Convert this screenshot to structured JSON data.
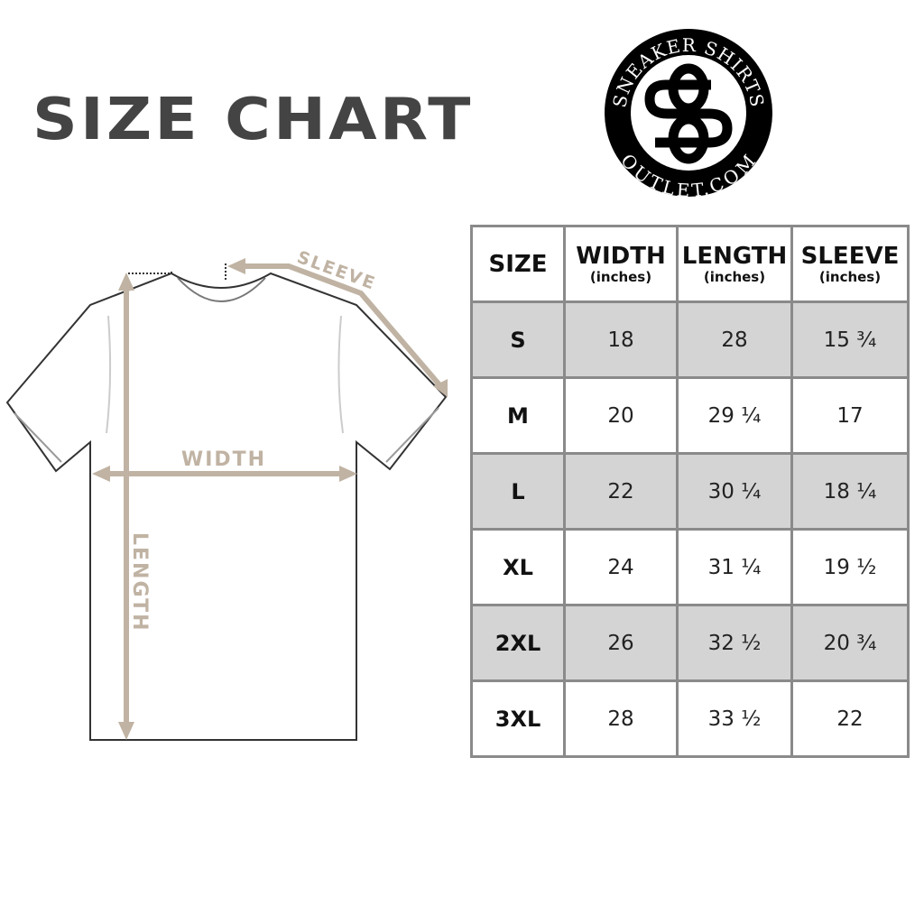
{
  "title": "SIZE CHART",
  "logo": {
    "top_text": "SNEAKER SHIRTS",
    "bottom_text": "OUTLET.COM",
    "monogram": "SS"
  },
  "diagram": {
    "sleeve_label": "SLEEVE",
    "width_label": "WIDTH",
    "length_label": "LENGTH",
    "arrow_color": "#c0b3a3"
  },
  "table": {
    "headers": [
      {
        "main": "SIZE",
        "sub": ""
      },
      {
        "main": "WIDTH",
        "sub": "(inches)"
      },
      {
        "main": "LENGTH",
        "sub": "(inches)"
      },
      {
        "main": "SLEEVE",
        "sub": "(inches)"
      }
    ],
    "rows": [
      [
        "S",
        "18",
        "28",
        "15 ¾"
      ],
      [
        "M",
        "20",
        "29 ¼",
        "17"
      ],
      [
        "L",
        "22",
        "30 ¼",
        "18 ¼"
      ],
      [
        "XL",
        "24",
        "31 ¼",
        "19 ½"
      ],
      [
        "2XL",
        "26",
        "32 ½",
        "20 ¾"
      ],
      [
        "3XL",
        "28",
        "33 ½",
        "22"
      ]
    ],
    "shade_color": "#d4d4d4",
    "border_color": "#8a8a8a"
  }
}
